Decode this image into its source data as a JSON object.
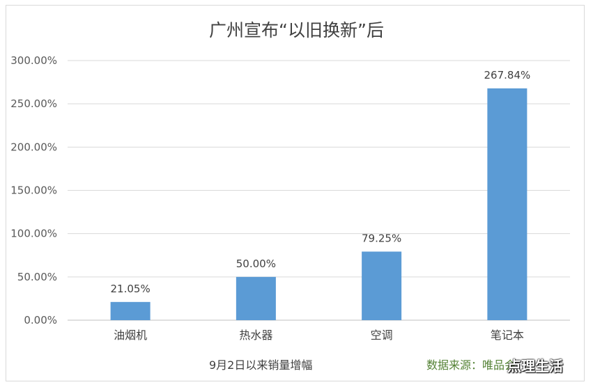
{
  "chart_data": {
    "type": "bar",
    "title": "广州宣布“以旧换新”后",
    "categories": [
      "油烟机",
      "热水器",
      "空调",
      "笔记本"
    ],
    "values": [
      21.05,
      50.0,
      79.25,
      267.84
    ],
    "data_labels": [
      "21.05%",
      "50.00%",
      "79.25%",
      "267.84%"
    ],
    "ylim": [
      0,
      300
    ],
    "yticks": [
      0,
      50,
      100,
      150,
      200,
      250,
      300
    ],
    "ytick_labels": [
      "0.00%",
      "50.00%",
      "100.00%",
      "150.00%",
      "200.00%",
      "250.00%",
      "300.00%"
    ],
    "xlabel": "9月2日以来销量增幅",
    "ylabel": "",
    "grid": true,
    "legend": "none",
    "bar_color": "#5b9bd5"
  },
  "source_text": "数据来源：唯品会",
  "watermark": "点理生活"
}
